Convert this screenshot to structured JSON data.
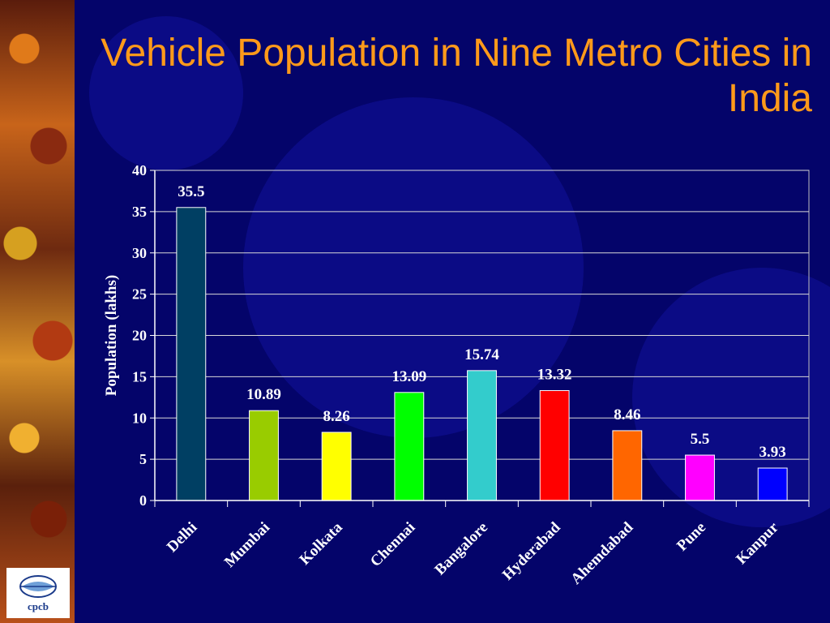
{
  "slide": {
    "title": "Vehicle Population in Nine Metro Cities in India",
    "logo_text": "cpcb"
  },
  "colors": {
    "background": "#04046a",
    "title": "#ff9a1a",
    "text": "#ffffff"
  },
  "chart_data": {
    "type": "bar",
    "title": "",
    "xlabel": "",
    "ylabel": "Population (lakhs)",
    "ylim": [
      0,
      40
    ],
    "yticks": [
      0,
      5,
      10,
      15,
      20,
      25,
      30,
      35,
      40
    ],
    "grid": true,
    "categories": [
      "Delhi",
      "Mumbai",
      "Kolkata",
      "Chennai",
      "Bangalore",
      "Hyderabad",
      "Ahemdabad",
      "Pune",
      "Kanpur"
    ],
    "values": [
      35.5,
      10.89,
      8.26,
      13.09,
      15.74,
      13.32,
      8.46,
      5.5,
      3.93
    ],
    "value_labels": [
      "35.5",
      "10.89",
      "8.26",
      "13.09",
      "15.74",
      "13.32",
      "8.46",
      "5.5",
      "3.93"
    ],
    "bar_colors": [
      "#003f63",
      "#99cc00",
      "#ffff00",
      "#00ff00",
      "#33cccc",
      "#ff0000",
      "#ff6600",
      "#ff00ff",
      "#0000ff"
    ]
  }
}
